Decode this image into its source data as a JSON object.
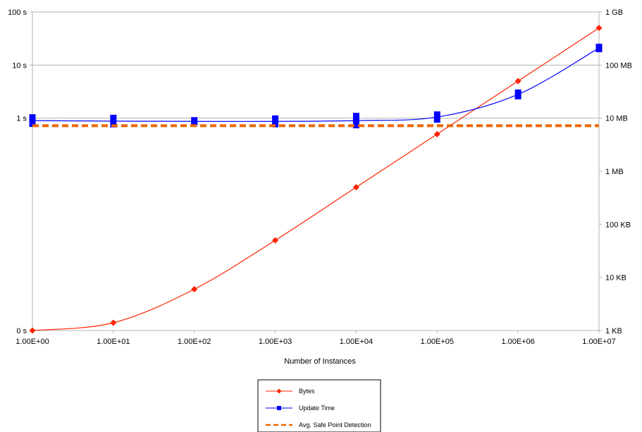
{
  "chart_data": {
    "type": "line",
    "title": "",
    "xlabel": "Number of Instances",
    "x_scale": "log",
    "x": [
      1,
      10,
      100,
      1000,
      10000,
      100000,
      1000000,
      10000000
    ],
    "x_tick_labels": [
      "1.00E+00",
      "1.00E+01",
      "1.00E+02",
      "1.00E+03",
      "1.00E+04",
      "1.00E+05",
      "1.00E+06",
      "1.00E+07"
    ],
    "y_left_tick_labels": [
      "100 s",
      "10 s",
      "1 s",
      "0 s"
    ],
    "y_right_tick_labels": [
      "1 GB",
      "100 MB",
      "10 MB",
      "1 MB",
      "100 KB",
      "10 KB",
      "1 KB"
    ],
    "y_right_scale": "log",
    "y_right_range_bytes": [
      1000,
      1000000000
    ],
    "grid": "horizontal major gridlines",
    "legend_position": "bottom-center",
    "series": [
      {
        "name": "Bytes",
        "axis": "right",
        "color": "#ff2200",
        "marker": "diamond",
        "values_bytes": [
          1000,
          1400,
          6000,
          50000,
          500000,
          5000000,
          50000000,
          500000000
        ]
      },
      {
        "name": "Update Time",
        "axis": "left",
        "color": "#0000ff",
        "marker": "square",
        "values_seconds": [
          0.9,
          0.88,
          0.87,
          0.87,
          0.9,
          1.05,
          2.8,
          21
        ],
        "marker_heights_rel": [
          1.8,
          1.8,
          1.2,
          1.7,
          2.2,
          1.6,
          1.4,
          1.2
        ]
      },
      {
        "name": "Avg. Safe Point Detection",
        "axis": "left",
        "color": "#ee6600",
        "style": "dashed",
        "values_seconds": [
          0.72,
          0.72
        ]
      }
    ]
  }
}
